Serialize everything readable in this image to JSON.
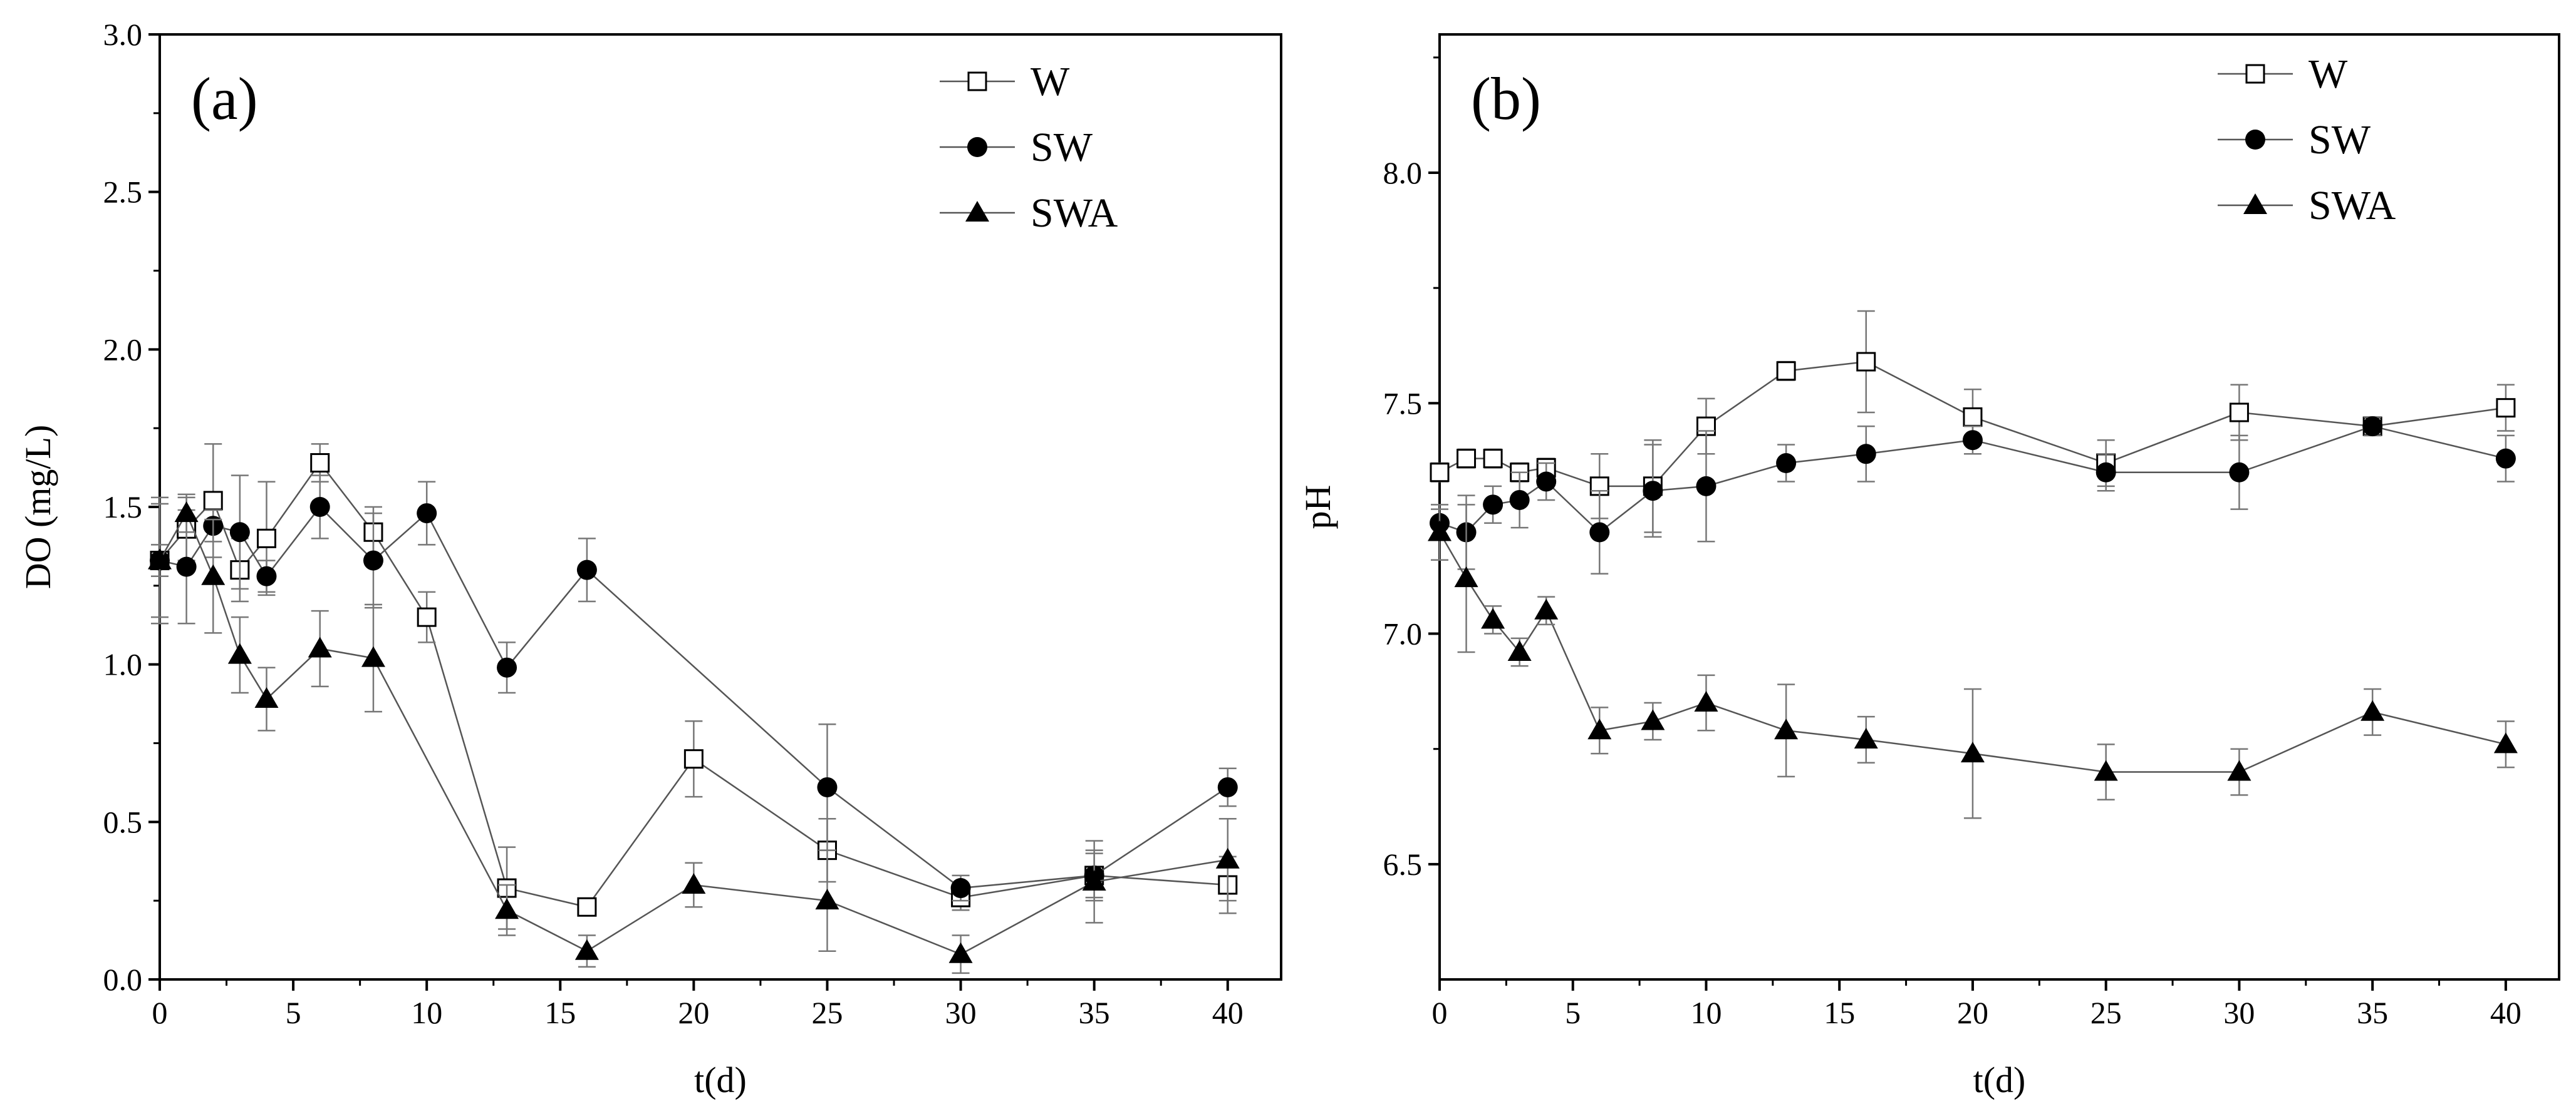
{
  "chart_data": [
    {
      "type": "line",
      "panel_label": "(a)",
      "xlabel": "t(d)",
      "ylabel": "DO (mg/L)",
      "xlim": [
        0,
        42
      ],
      "ylim": [
        0,
        3.0
      ],
      "xticks": [
        0,
        5,
        10,
        15,
        20,
        25,
        30,
        35,
        40
      ],
      "xtick_labels": [
        "0",
        "5",
        "10",
        "15",
        "20",
        "25",
        "30",
        "35",
        "40"
      ],
      "yticks": [
        0,
        0.5,
        1.0,
        1.5,
        2.0,
        2.5,
        3.0
      ],
      "ytick_labels": [
        "0.0",
        "0.5",
        "1.0",
        "1.5",
        "2.0",
        "2.5",
        "3.0"
      ],
      "legend_position": "top-right",
      "series": [
        {
          "name": "W",
          "marker": "open-square",
          "x": [
            0,
            1,
            2,
            3,
            4,
            6,
            8,
            10,
            13,
            16,
            20,
            25,
            30,
            35,
            40
          ],
          "y": [
            1.33,
            1.43,
            1.52,
            1.3,
            1.4,
            1.64,
            1.42,
            1.15,
            0.29,
            0.23,
            0.7,
            0.41,
            0.26,
            0.33,
            0.3
          ],
          "err": [
            0.2,
            0.1,
            0.18,
            0.1,
            0.18,
            0.06,
            0.08,
            0.08,
            0.13,
            0.02,
            0.12,
            0.1,
            0.04,
            0.08,
            0.09
          ]
        },
        {
          "name": "SW",
          "marker": "filled-circle",
          "x": [
            0,
            1,
            2,
            3,
            4,
            6,
            8,
            10,
            13,
            16,
            20,
            25,
            30,
            35,
            40
          ],
          "y": [
            1.33,
            1.31,
            1.44,
            1.42,
            1.28,
            1.5,
            1.33,
            1.48,
            0.99,
            1.3,
            null,
            0.61,
            0.29,
            0.33,
            0.61
          ],
          "err": [
            0.05,
            0.18,
            0.05,
            0.18,
            0.05,
            0.1,
            0.15,
            0.1,
            0.08,
            0.1,
            null,
            0.2,
            0.04,
            0.07,
            0.06
          ]
        },
        {
          "name": "SWA",
          "marker": "filled-triangle",
          "x": [
            0,
            1,
            2,
            3,
            4,
            6,
            8,
            10,
            13,
            16,
            20,
            25,
            30,
            35,
            40
          ],
          "y": [
            1.33,
            1.48,
            1.28,
            1.03,
            0.89,
            1.05,
            1.02,
            null,
            0.22,
            0.09,
            0.3,
            0.25,
            0.08,
            0.31,
            0.38
          ],
          "err": [
            0.18,
            0.06,
            0.18,
            0.12,
            0.1,
            0.12,
            0.17,
            null,
            0.08,
            0.05,
            0.07,
            0.16,
            0.06,
            0.13,
            0.13
          ]
        }
      ]
    },
    {
      "type": "line",
      "panel_label": "(b)",
      "xlabel": "t(d)",
      "ylabel": "pH",
      "xlim": [
        0,
        42
      ],
      "ylim": [
        6.25,
        8.3
      ],
      "xticks": [
        0,
        5,
        10,
        15,
        20,
        25,
        30,
        35,
        40
      ],
      "xtick_labels": [
        "0",
        "5",
        "10",
        "15",
        "20",
        "25",
        "30",
        "35",
        "40"
      ],
      "yticks": [
        6.5,
        7.0,
        7.5,
        8.0
      ],
      "ytick_labels": [
        "6.5",
        "7.0",
        "7.5",
        "8.0"
      ],
      "legend_position": "top-right",
      "series": [
        {
          "name": "W",
          "marker": "open-square",
          "x": [
            0,
            1,
            2,
            3,
            4,
            6,
            8,
            10,
            13,
            16,
            20,
            25,
            30,
            35,
            40
          ],
          "y": [
            7.35,
            7.38,
            7.38,
            7.35,
            7.36,
            7.32,
            7.32,
            7.45,
            7.57,
            7.59,
            7.47,
            7.37,
            7.48,
            7.45,
            7.49
          ],
          "err": [
            0.02,
            0.02,
            0.02,
            0.02,
            0.02,
            0.07,
            0.1,
            0.06,
            0.02,
            0.11,
            0.06,
            0.05,
            0.06,
            0.02,
            0.05
          ]
        },
        {
          "name": "SW",
          "marker": "filled-circle",
          "x": [
            0,
            1,
            2,
            3,
            4,
            6,
            8,
            10,
            13,
            16,
            20,
            25,
            30,
            35,
            40
          ],
          "y": [
            7.24,
            7.22,
            7.28,
            7.29,
            7.33,
            7.22,
            7.31,
            7.32,
            7.37,
            7.39,
            7.42,
            7.35,
            7.35,
            7.45,
            7.38
          ],
          "err": [
            0.03,
            0.08,
            0.04,
            0.06,
            0.04,
            0.09,
            0.1,
            0.12,
            0.04,
            0.06,
            0.03,
            0.04,
            0.08,
            0.02,
            0.05
          ]
        },
        {
          "name": "SWA",
          "marker": "filled-triangle",
          "x": [
            0,
            1,
            2,
            3,
            4,
            6,
            8,
            10,
            13,
            16,
            20,
            25,
            30,
            35,
            40
          ],
          "y": [
            7.22,
            7.12,
            7.03,
            6.96,
            7.05,
            6.79,
            6.81,
            6.85,
            6.79,
            6.77,
            6.74,
            6.7,
            6.7,
            6.83,
            6.76
          ],
          "err": [
            0.06,
            0.16,
            0.03,
            0.03,
            0.03,
            0.05,
            0.04,
            0.06,
            0.1,
            0.05,
            0.14,
            0.06,
            0.05,
            0.05,
            0.05
          ]
        }
      ]
    }
  ]
}
